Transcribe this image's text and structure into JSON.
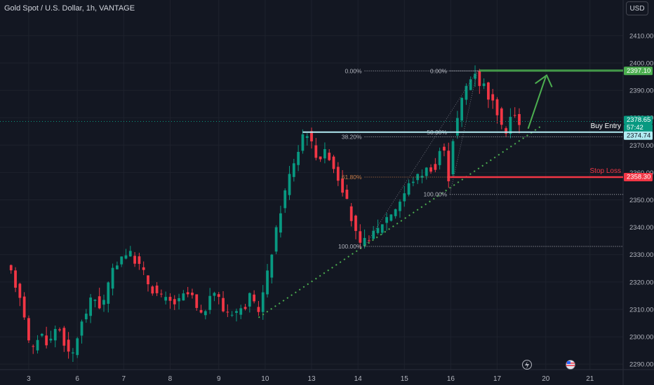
{
  "header": {
    "title": "Gold Spot / U.S. Dollar, 1h, VANTAGE",
    "currency_button": "USD"
  },
  "colors": {
    "up": "#089981",
    "down": "#f23645",
    "grid": "#1e222d",
    "axis_text": "#b2b5be",
    "entry": "#b2ebf2",
    "green": "#4caf50",
    "red": "#f23645"
  },
  "chart_data": {
    "type": "candlestick",
    "title": "Gold Spot / U.S. Dollar, 1h, VANTAGE",
    "ylim": [
      2288,
      2423
    ],
    "y_ticks": [
      2290,
      2300,
      2310,
      2320,
      2330,
      2340,
      2350,
      2360,
      2370,
      2380,
      2390,
      2400,
      2410
    ],
    "y_tick_labels": [
      "2290.00",
      "2300.00",
      "2310.00",
      "2320.00",
      "2330.00",
      "2340.00",
      "2350.00",
      "2360.00",
      "2370.00",
      "2380.00",
      "2390.00",
      "2400.00",
      "2410.00"
    ],
    "x_tick_labels": [
      "3",
      "6",
      "7",
      "8",
      "9",
      "10",
      "13",
      "14",
      "15",
      "16",
      "17",
      "20",
      "21"
    ],
    "x_tick_positions": [
      4,
      15,
      25.5,
      36,
      47,
      57.5,
      68,
      78.5,
      89,
      99.5,
      110,
      121,
      131
    ],
    "x_range": [
      -2.5,
      138.5
    ],
    "candle_count": 116,
    "anchors": [
      [
        0,
        2325
      ],
      [
        3,
        2313
      ],
      [
        5,
        2293
      ],
      [
        7,
        2302
      ],
      [
        9,
        2297
      ],
      [
        11,
        2305
      ],
      [
        14,
        2291
      ],
      [
        16,
        2303
      ],
      [
        19,
        2315
      ],
      [
        21,
        2310
      ],
      [
        23,
        2322
      ],
      [
        25,
        2329
      ],
      [
        27,
        2331
      ],
      [
        30,
        2325
      ],
      [
        32,
        2318
      ],
      [
        34,
        2315
      ],
      [
        36,
        2313
      ],
      [
        38,
        2312
      ],
      [
        40,
        2316
      ],
      [
        42,
        2314
      ],
      [
        43,
        2306
      ],
      [
        45,
        2312
      ],
      [
        47,
        2318
      ],
      [
        48,
        2310
      ],
      [
        50,
        2309
      ],
      [
        53,
        2310
      ],
      [
        55,
        2316
      ],
      [
        56,
        2307
      ],
      [
        58,
        2319
      ],
      [
        60,
        2335
      ],
      [
        62,
        2350
      ],
      [
        64,
        2362
      ],
      [
        65.5,
        2368
      ],
      [
        67,
        2377
      ],
      [
        68,
        2372
      ],
      [
        70,
        2365
      ],
      [
        72,
        2368
      ],
      [
        74,
        2360
      ],
      [
        76,
        2352
      ],
      [
        78,
        2340
      ],
      [
        79.5,
        2333
      ],
      [
        81,
        2336
      ],
      [
        83,
        2338
      ],
      [
        85,
        2343
      ],
      [
        87,
        2346
      ],
      [
        89,
        2351
      ],
      [
        91,
        2357
      ],
      [
        93,
        2359
      ],
      [
        95,
        2362
      ],
      [
        97,
        2361
      ],
      [
        98,
        2375
      ],
      [
        99.3,
        2355
      ],
      [
        100.3,
        2371
      ],
      [
        102,
        2383
      ],
      [
        103,
        2390
      ],
      [
        104,
        2393
      ],
      [
        105.5,
        2397
      ],
      [
        106,
        2391
      ],
      [
        107,
        2394
      ],
      [
        108.5,
        2388
      ],
      [
        110,
        2384
      ],
      [
        111,
        2380
      ],
      [
        112,
        2372
      ],
      [
        113,
        2379
      ],
      [
        114,
        2382
      ],
      [
        115.5,
        2377
      ]
    ],
    "series": [
      {
        "name": "Buy Entry",
        "value": 2374.74
      },
      {
        "name": "Stop Loss",
        "value": 2358.3
      }
    ],
    "price_tags": [
      {
        "label": "2397.10",
        "value": 2397.1,
        "color": "#4caf50"
      },
      {
        "label": "2378.65",
        "value": 2378.65,
        "color": "#089981"
      },
      {
        "label": "57:42",
        "value": 2378.65,
        "color": "#089981"
      },
      {
        "label": "2374.74",
        "value": 2374.74,
        "color": "#b2ebf2"
      },
      {
        "label": "2358.30",
        "value": 2358.3,
        "color": "#f23645"
      }
    ],
    "fib_1": {
      "levels": [
        {
          "label": "0.00%",
          "value": 2397.1
        },
        {
          "label": "38.20%",
          "value": 2373.0
        },
        {
          "label": "61.80%",
          "value": 2358.3
        },
        {
          "label": "100.00%",
          "value": 2333.0
        }
      ]
    },
    "fib_2": {
      "levels": [
        {
          "label": "0.00%",
          "value": 2397.1
        },
        {
          "label": "50.00%",
          "value": 2374.7
        },
        {
          "label": "100.00%",
          "value": 2352.0
        }
      ]
    },
    "annotations": {
      "buy_entry": "Buy Entry",
      "stop_loss": "Stop Loss"
    },
    "target_level": 2397.1,
    "current_price": 2378.65,
    "countdown": "57:42"
  }
}
